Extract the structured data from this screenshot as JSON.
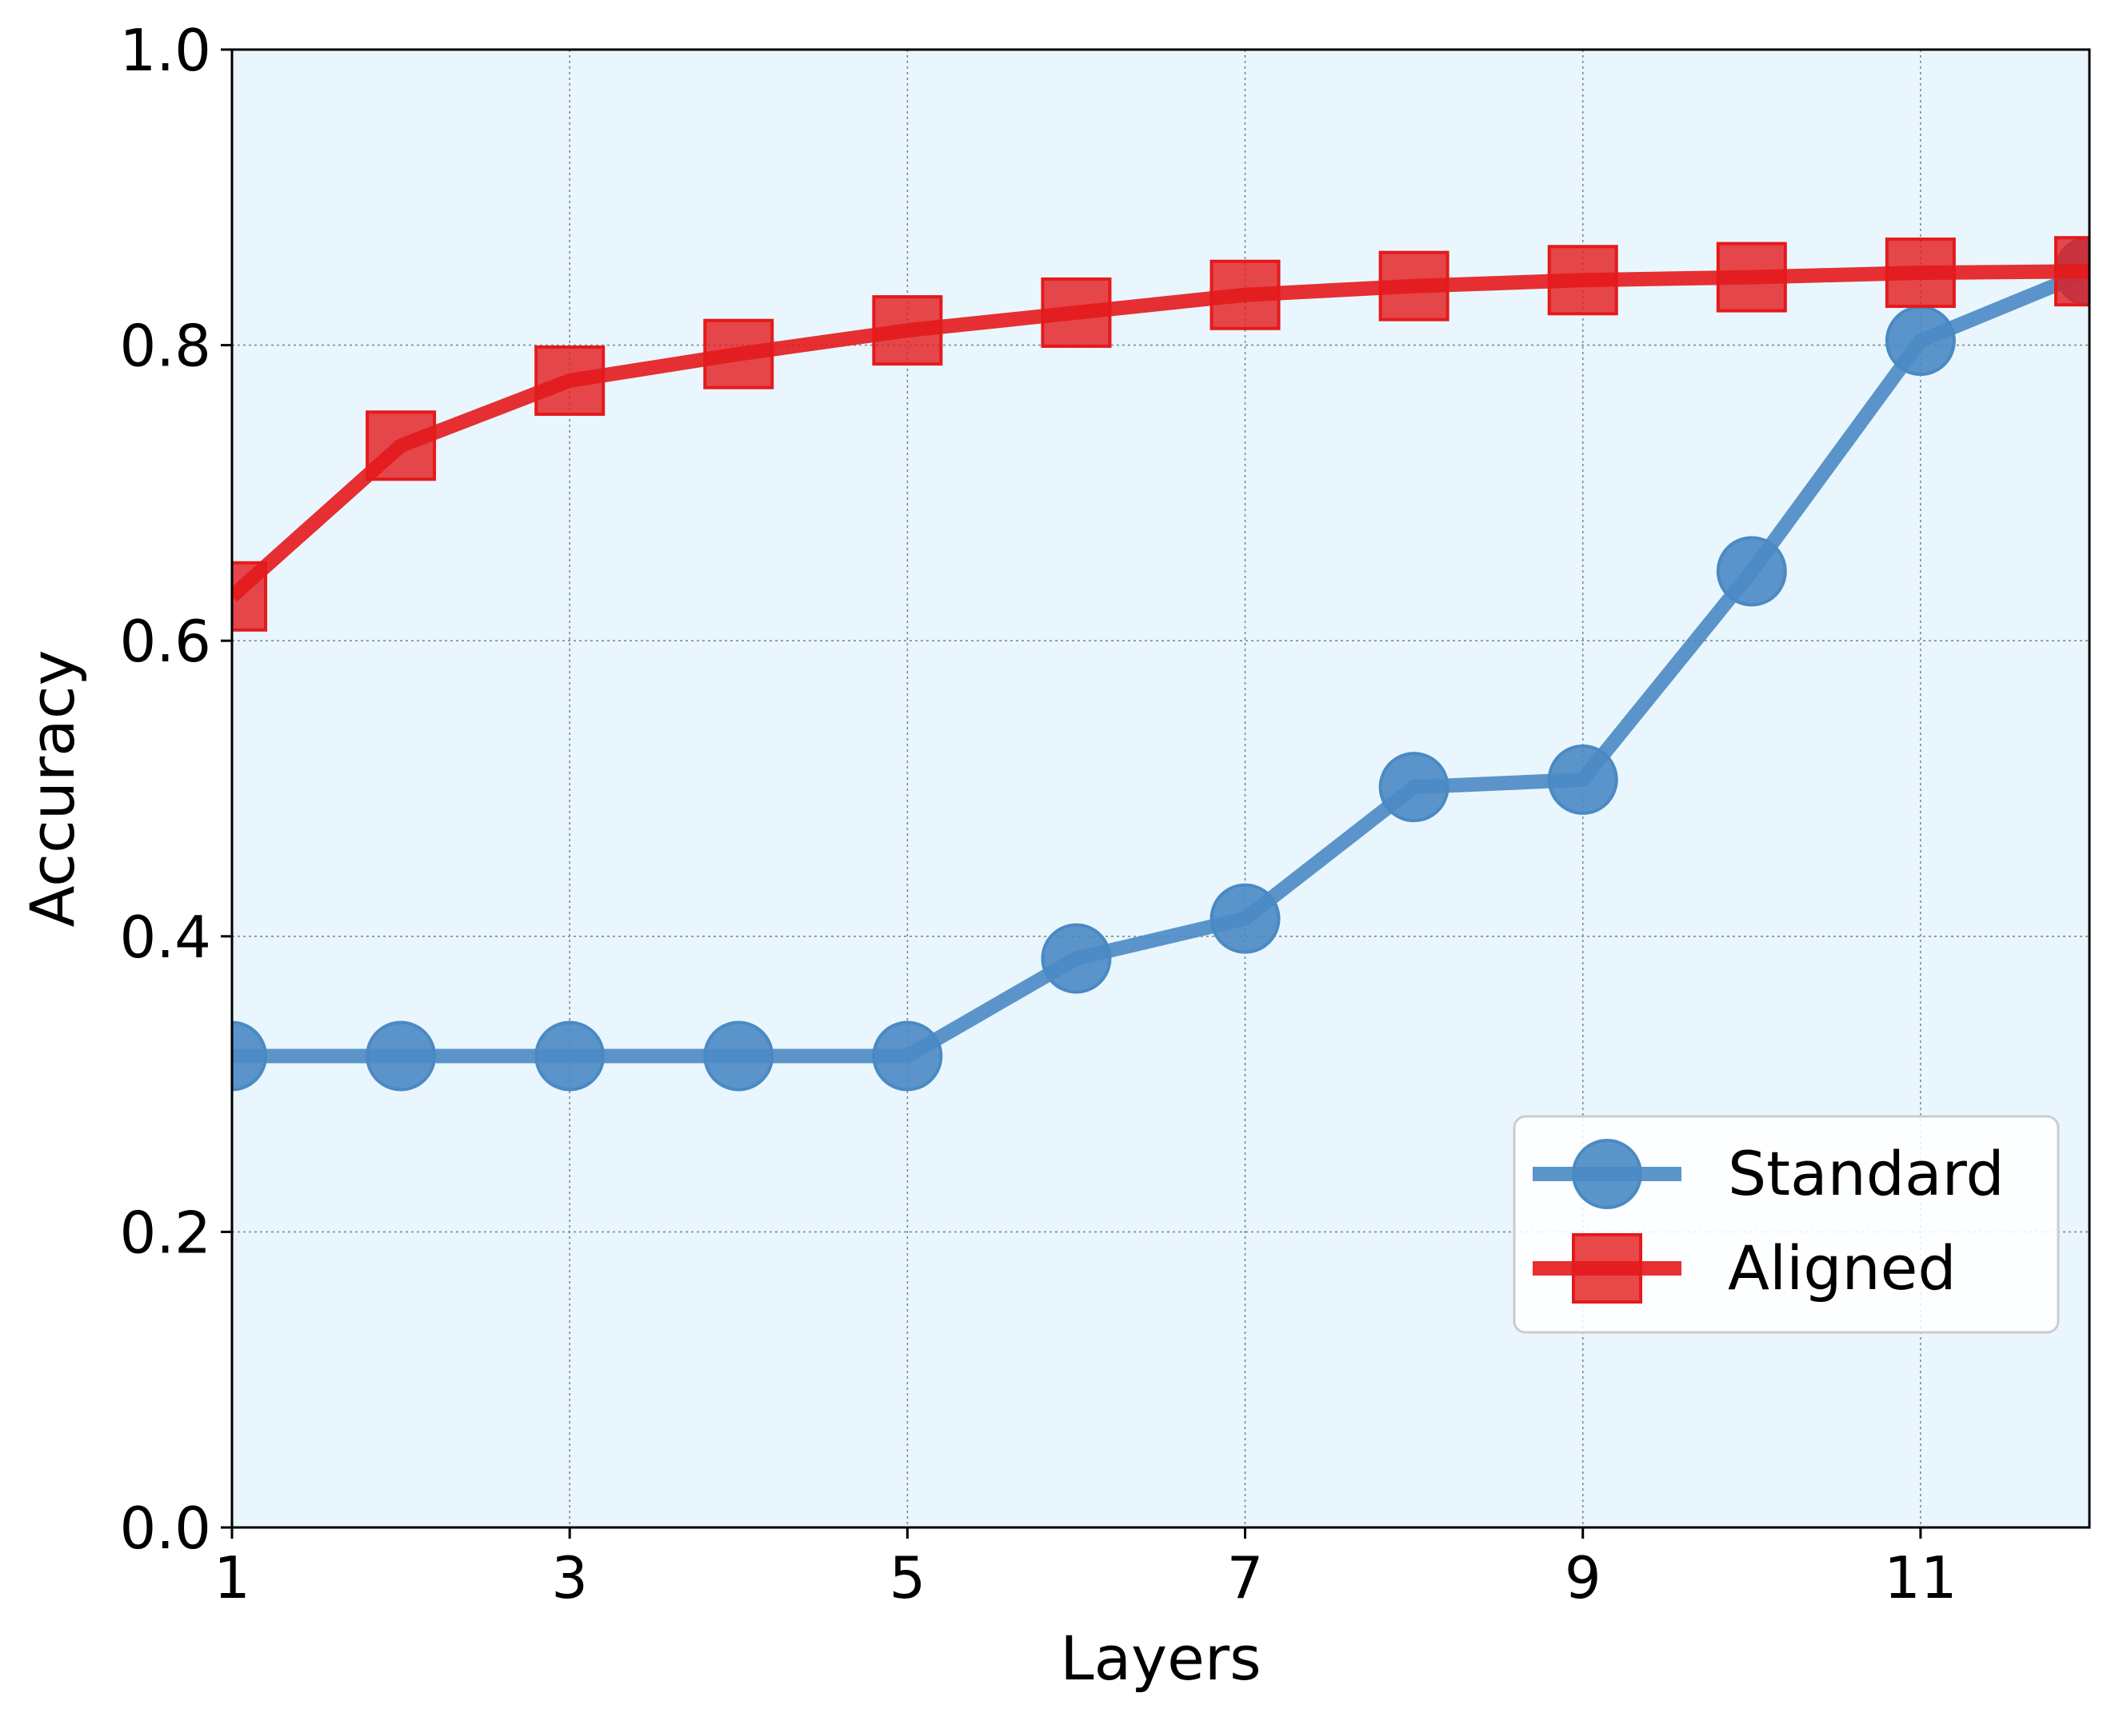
{
  "chart_data": {
    "type": "line",
    "title": "",
    "xlabel": "Layers",
    "ylabel": "Accuracy",
    "xlim": [
      1,
      12
    ],
    "ylim": [
      0.0,
      1.0
    ],
    "x_ticks": [
      "1",
      "3",
      "5",
      "7",
      "9",
      "11"
    ],
    "y_ticks": [
      "0.0",
      "0.2",
      "0.4",
      "0.6",
      "0.8",
      "1.0"
    ],
    "grid": true,
    "legend_position": "lower-right",
    "background_color": "#eaf6fd",
    "x": [
      1,
      2,
      3,
      4,
      5,
      6,
      7,
      8,
      9,
      10,
      11,
      12
    ],
    "series": [
      {
        "name": "Standard",
        "marker": "circle",
        "color": "#4a8ac4",
        "values": [
          0.319,
          0.319,
          0.319,
          0.319,
          0.319,
          0.385,
          0.412,
          0.501,
          0.506,
          0.647,
          0.803,
          0.85
        ]
      },
      {
        "name": "Aligned",
        "marker": "square",
        "color": "#e41a1c",
        "values": [
          0.63,
          0.732,
          0.776,
          0.794,
          0.81,
          0.822,
          0.834,
          0.84,
          0.844,
          0.846,
          0.849,
          0.85
        ]
      }
    ]
  }
}
